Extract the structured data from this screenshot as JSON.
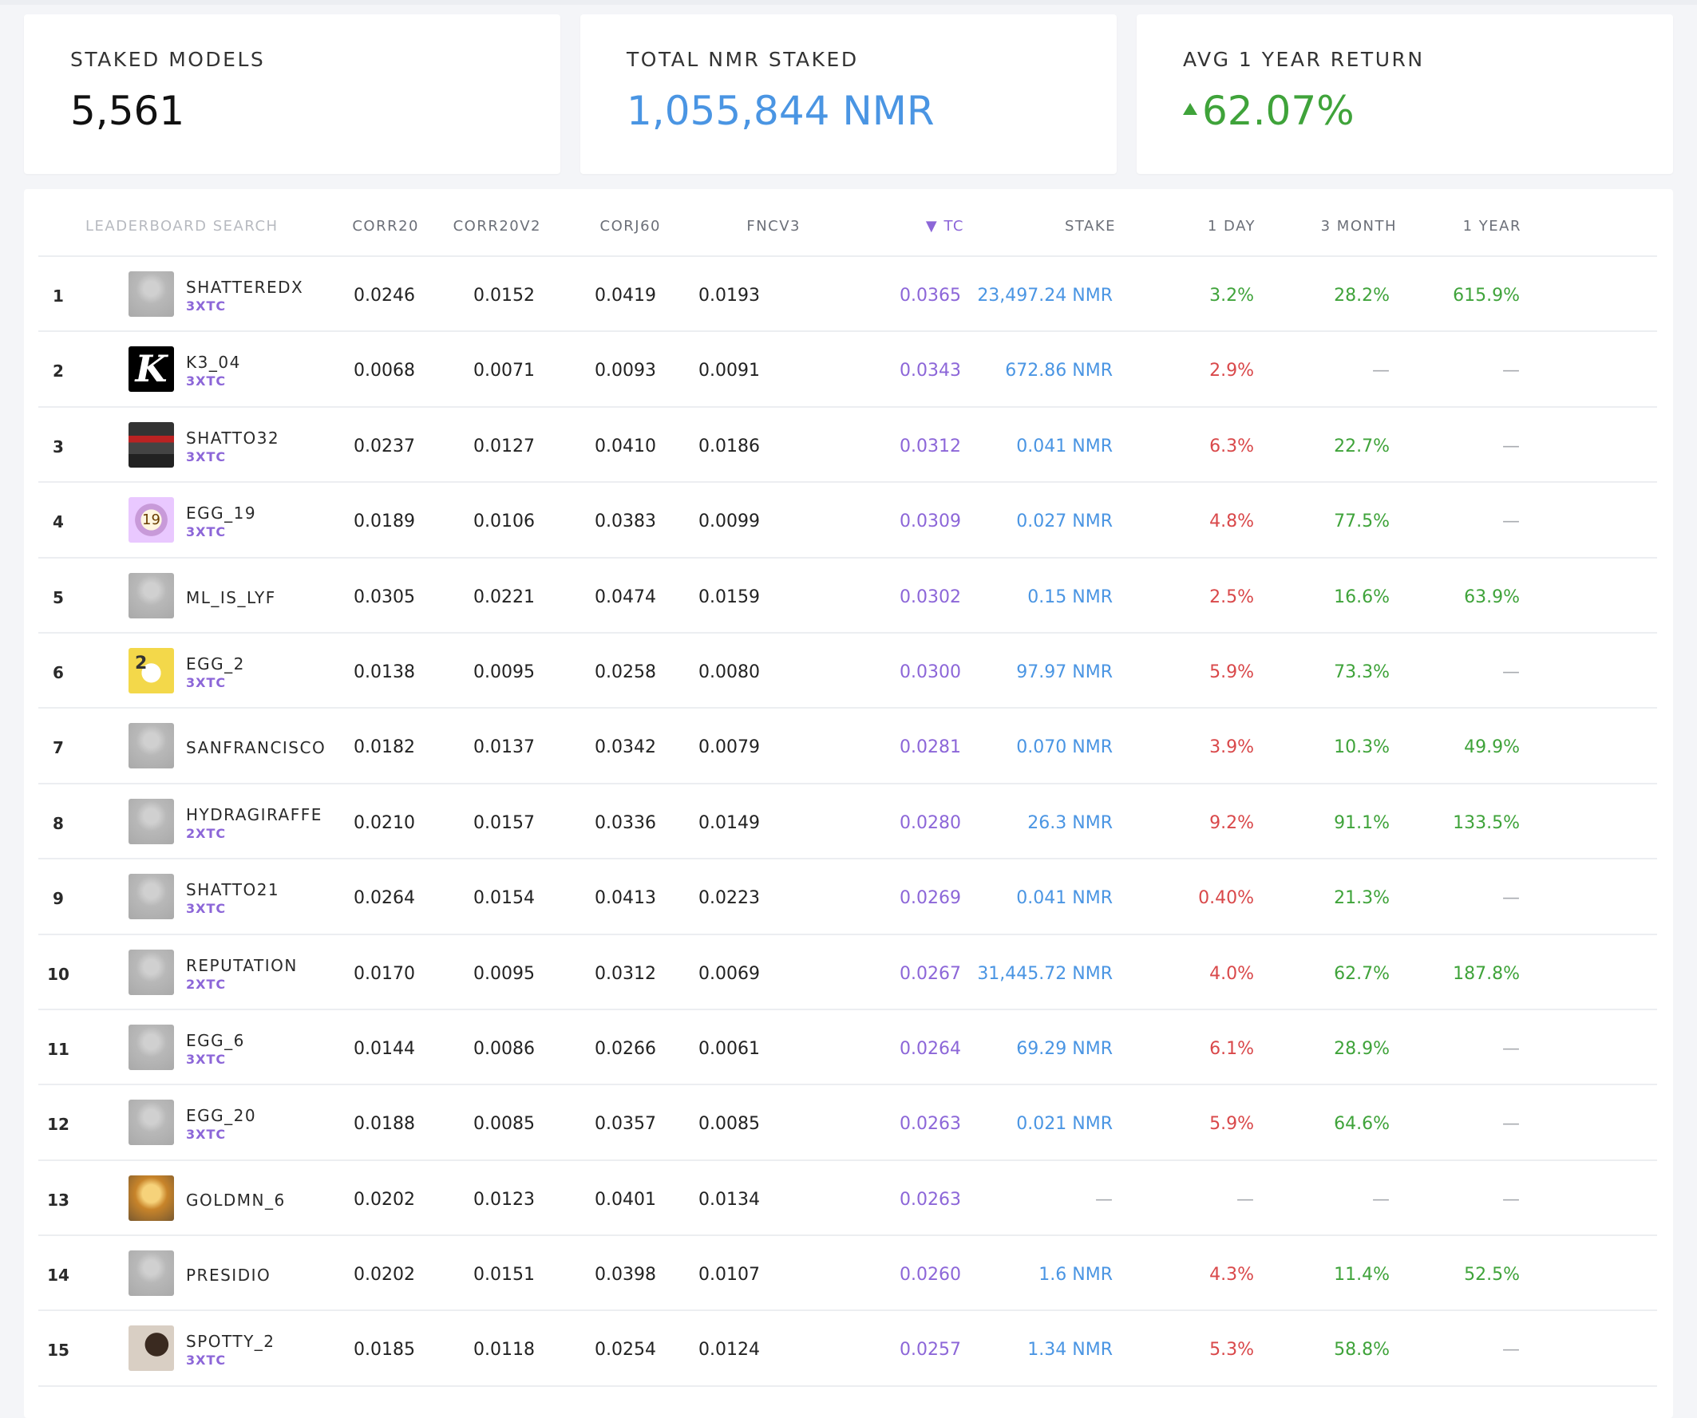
{
  "stats": [
    {
      "label": "STAKED MODELS",
      "value": "5,561",
      "tone": "default"
    },
    {
      "label": "TOTAL NMR STAKED",
      "value": "1,055,844 NMR",
      "tone": "blue"
    },
    {
      "label": "AVG 1 YEAR RETURN",
      "value": "62.07%",
      "tone": "green",
      "trend_icon": "triangle-up-icon"
    }
  ],
  "leaderboard": {
    "search_placeholder": "LEADERBOARD SEARCH",
    "columns": {
      "corr20": "CORR20",
      "corr20v2": "CORR20V2",
      "corj60": "CORJ60",
      "fncv3": "FNCV3",
      "tc": "▼ TC",
      "stake": "STAKE",
      "day1": "1 DAY",
      "month3": "3 MONTH",
      "year1": "1 YEAR"
    },
    "rows": [
      {
        "rank": "1",
        "name": "SHATTEREDX",
        "tag": "3XTC",
        "avatar": "gray",
        "corr20": "0.0246",
        "corr20v2": "0.0152",
        "corj60": "0.0419",
        "fncv3": "0.0193",
        "tc": "0.0365",
        "stake": "23,497.24 NMR",
        "day1": "3.2%",
        "day1_tone": "green",
        "month3": "28.2%",
        "month3_tone": "green",
        "year1": "615.9%",
        "year1_tone": "green"
      },
      {
        "rank": "2",
        "name": "K3_04",
        "tag": "3XTC",
        "avatar": "k",
        "avatar_text": "K",
        "corr20": "0.0068",
        "corr20v2": "0.0071",
        "corj60": "0.0093",
        "fncv3": "0.0091",
        "tc": "0.0343",
        "stake": "672.86 NMR",
        "day1": "2.9%",
        "day1_tone": "red",
        "month3": "—",
        "month3_tone": "dash",
        "year1": "—",
        "year1_tone": "dash"
      },
      {
        "rank": "3",
        "name": "SHATTO32",
        "tag": "3XTC",
        "avatar": "helm",
        "corr20": "0.0237",
        "corr20v2": "0.0127",
        "corj60": "0.0410",
        "fncv3": "0.0186",
        "tc": "0.0312",
        "stake": "0.041 NMR",
        "day1": "6.3%",
        "day1_tone": "red",
        "month3": "22.7%",
        "month3_tone": "green",
        "year1": "—",
        "year1_tone": "dash"
      },
      {
        "rank": "4",
        "name": "EGG_19",
        "tag": "3XTC",
        "avatar": "egg19",
        "avatar_text": "19",
        "corr20": "0.0189",
        "corr20v2": "0.0106",
        "corj60": "0.0383",
        "fncv3": "0.0099",
        "tc": "0.0309",
        "stake": "0.027 NMR",
        "day1": "4.8%",
        "day1_tone": "red",
        "month3": "77.5%",
        "month3_tone": "green",
        "year1": "—",
        "year1_tone": "dash"
      },
      {
        "rank": "5",
        "name": "ML_IS_LYF",
        "tag": "",
        "avatar": "gray",
        "corr20": "0.0305",
        "corr20v2": "0.0221",
        "corj60": "0.0474",
        "fncv3": "0.0159",
        "tc": "0.0302",
        "stake": "0.15 NMR",
        "day1": "2.5%",
        "day1_tone": "red",
        "month3": "16.6%",
        "month3_tone": "green",
        "year1": "63.9%",
        "year1_tone": "green"
      },
      {
        "rank": "6",
        "name": "EGG_2",
        "tag": "3XTC",
        "avatar": "egg2",
        "avatar_text": "2",
        "corr20": "0.0138",
        "corr20v2": "0.0095",
        "corj60": "0.0258",
        "fncv3": "0.0080",
        "tc": "0.0300",
        "stake": "97.97 NMR",
        "day1": "5.9%",
        "day1_tone": "red",
        "month3": "73.3%",
        "month3_tone": "green",
        "year1": "—",
        "year1_tone": "dash"
      },
      {
        "rank": "7",
        "name": "SANFRANCISCO",
        "tag": "",
        "avatar": "gray",
        "corr20": "0.0182",
        "corr20v2": "0.0137",
        "corj60": "0.0342",
        "fncv3": "0.0079",
        "tc": "0.0281",
        "stake": "0.070 NMR",
        "day1": "3.9%",
        "day1_tone": "red",
        "month3": "10.3%",
        "month3_tone": "green",
        "year1": "49.9%",
        "year1_tone": "green"
      },
      {
        "rank": "8",
        "name": "HYDRAGIRAFFE",
        "tag": "2XTC",
        "avatar": "gray",
        "corr20": "0.0210",
        "corr20v2": "0.0157",
        "corj60": "0.0336",
        "fncv3": "0.0149",
        "tc": "0.0280",
        "stake": "26.3 NMR",
        "day1": "9.2%",
        "day1_tone": "red",
        "month3": "91.1%",
        "month3_tone": "green",
        "year1": "133.5%",
        "year1_tone": "green"
      },
      {
        "rank": "9",
        "name": "SHATTO21",
        "tag": "3XTC",
        "avatar": "gray",
        "corr20": "0.0264",
        "corr20v2": "0.0154",
        "corj60": "0.0413",
        "fncv3": "0.0223",
        "tc": "0.0269",
        "stake": "0.041 NMR",
        "day1": "0.40%",
        "day1_tone": "red",
        "month3": "21.3%",
        "month3_tone": "green",
        "year1": "—",
        "year1_tone": "dash"
      },
      {
        "rank": "10",
        "name": "REPUTATION",
        "tag": "2XTC",
        "avatar": "gray",
        "corr20": "0.0170",
        "corr20v2": "0.0095",
        "corj60": "0.0312",
        "fncv3": "0.0069",
        "tc": "0.0267",
        "stake": "31,445.72 NMR",
        "day1": "4.0%",
        "day1_tone": "red",
        "month3": "62.7%",
        "month3_tone": "green",
        "year1": "187.8%",
        "year1_tone": "green"
      },
      {
        "rank": "11",
        "name": "EGG_6",
        "tag": "3XTC",
        "avatar": "gray",
        "corr20": "0.0144",
        "corr20v2": "0.0086",
        "corj60": "0.0266",
        "fncv3": "0.0061",
        "tc": "0.0264",
        "stake": "69.29 NMR",
        "day1": "6.1%",
        "day1_tone": "red",
        "month3": "28.9%",
        "month3_tone": "green",
        "year1": "—",
        "year1_tone": "dash"
      },
      {
        "rank": "12",
        "name": "EGG_20",
        "tag": "3XTC",
        "avatar": "gray",
        "corr20": "0.0188",
        "corr20v2": "0.0085",
        "corj60": "0.0357",
        "fncv3": "0.0085",
        "tc": "0.0263",
        "stake": "0.021 NMR",
        "day1": "5.9%",
        "day1_tone": "red",
        "month3": "64.6%",
        "month3_tone": "green",
        "year1": "—",
        "year1_tone": "dash"
      },
      {
        "rank": "13",
        "name": "GOLDMN_6",
        "tag": "",
        "avatar": "gold",
        "corr20": "0.0202",
        "corr20v2": "0.0123",
        "corj60": "0.0401",
        "fncv3": "0.0134",
        "tc": "0.0263",
        "stake": "—",
        "stake_tone": "dash",
        "day1": "—",
        "day1_tone": "dash",
        "month3": "—",
        "month3_tone": "dash",
        "year1": "—",
        "year1_tone": "dash"
      },
      {
        "rank": "14",
        "name": "PRESIDIO",
        "tag": "",
        "avatar": "gray",
        "corr20": "0.0202",
        "corr20v2": "0.0151",
        "corj60": "0.0398",
        "fncv3": "0.0107",
        "tc": "0.0260",
        "stake": "1.6 NMR",
        "day1": "4.3%",
        "day1_tone": "red",
        "month3": "11.4%",
        "month3_tone": "green",
        "year1": "52.5%",
        "year1_tone": "green"
      },
      {
        "rank": "15",
        "name": "SPOTTY_2",
        "tag": "3XTC",
        "avatar": "spotty",
        "corr20": "0.0185",
        "corr20v2": "0.0118",
        "corj60": "0.0254",
        "fncv3": "0.0124",
        "tc": "0.0257",
        "stake": "1.34 NMR",
        "day1": "5.3%",
        "day1_tone": "red",
        "month3": "58.8%",
        "month3_tone": "green",
        "year1": "—",
        "year1_tone": "dash"
      }
    ]
  }
}
